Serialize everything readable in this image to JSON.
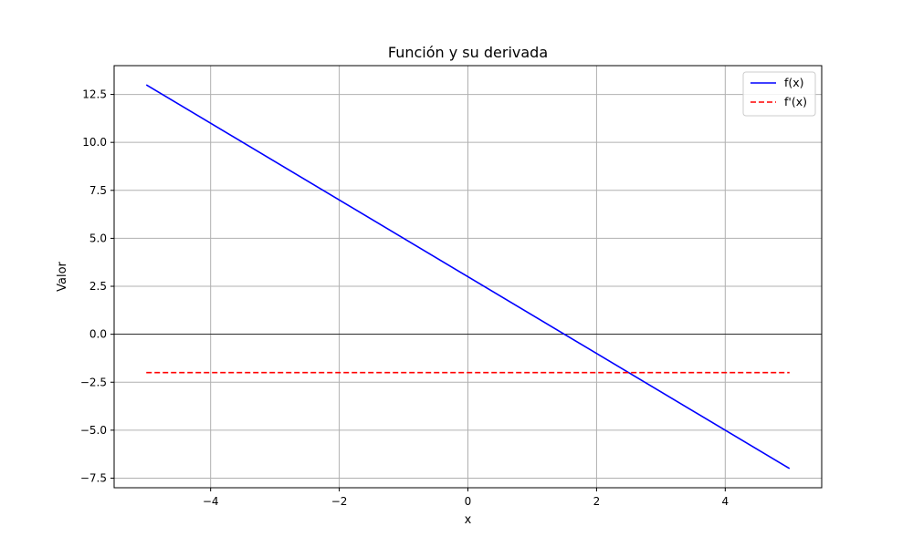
{
  "chart_data": {
    "type": "line",
    "title": "Función y su derivada",
    "xlabel": "x",
    "ylabel": "Valor",
    "xlim": [
      -5.5,
      5.5
    ],
    "ylim": [
      -8.0,
      14.0
    ],
    "xticks": [
      -4,
      -2,
      0,
      2,
      4
    ],
    "xtick_labels": [
      "−4",
      "−2",
      "0",
      "2",
      "4"
    ],
    "yticks": [
      -7.5,
      -5.0,
      -2.5,
      0.0,
      2.5,
      5.0,
      7.5,
      10.0,
      12.5
    ],
    "ytick_labels": [
      "−7.5",
      "−5.0",
      "−2.5",
      "0.0",
      "2.5",
      "5.0",
      "7.5",
      "10.0",
      "12.5"
    ],
    "grid": true,
    "zero_line": true,
    "legend_position": "top-right",
    "series": [
      {
        "name": "f(x)",
        "color": "#0000ff",
        "style": "solid",
        "x": [
          -5,
          5
        ],
        "y": [
          13,
          -7
        ]
      },
      {
        "name": "f'(x)",
        "color": "#ff0000",
        "style": "dashed",
        "x": [
          -5,
          5
        ],
        "y": [
          -2,
          -2
        ]
      }
    ]
  }
}
